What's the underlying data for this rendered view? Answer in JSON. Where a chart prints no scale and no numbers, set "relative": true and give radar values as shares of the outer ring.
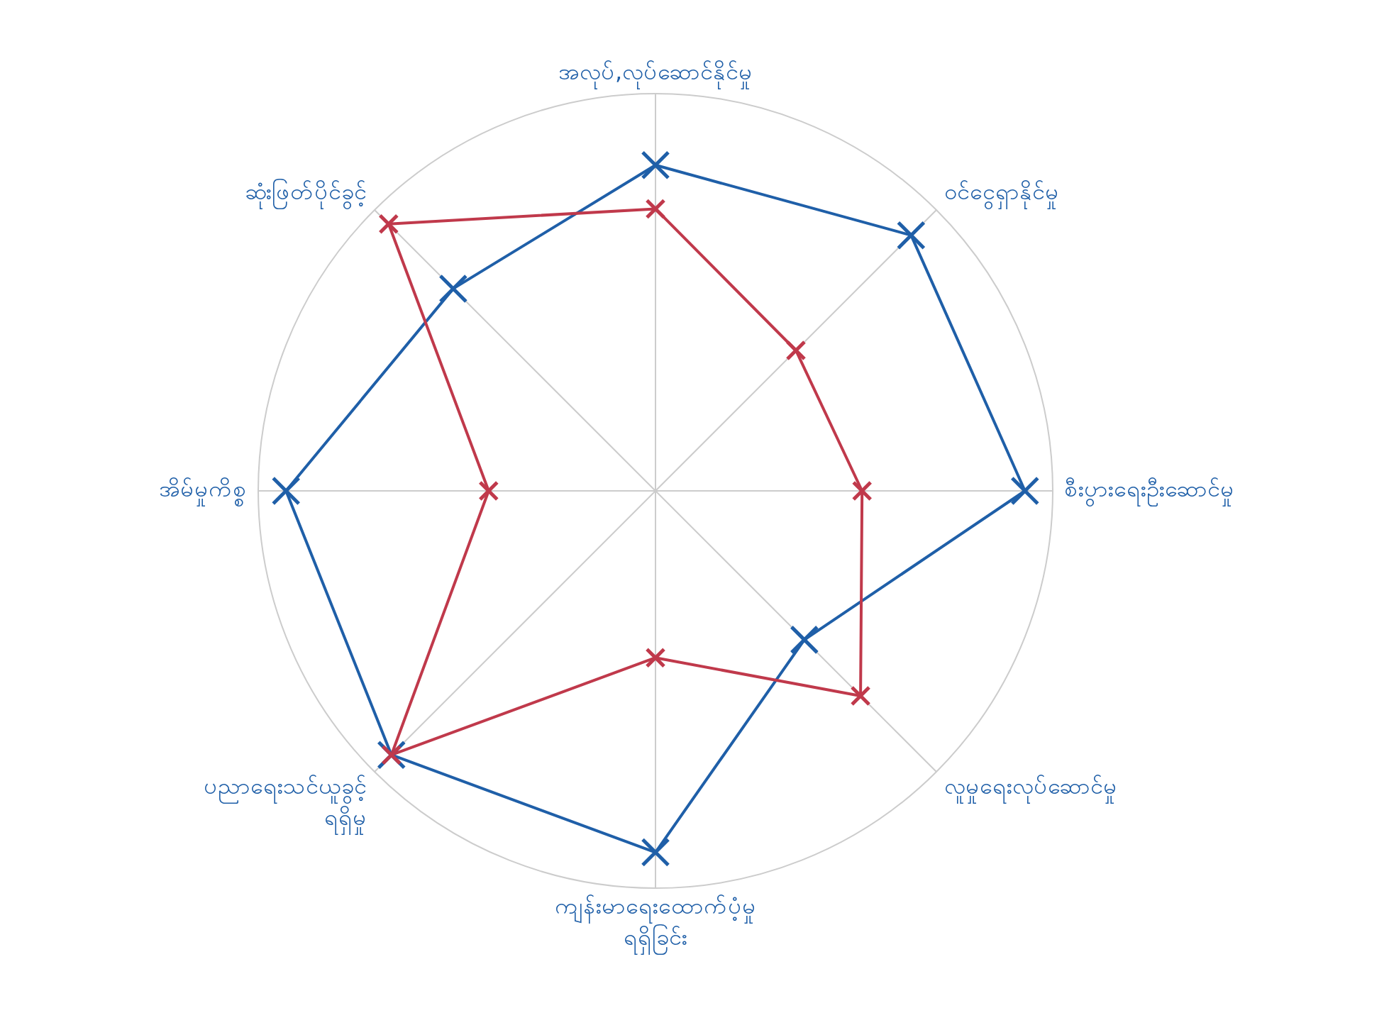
{
  "chart_data": {
    "type": "radar",
    "relative": true,
    "grid": true,
    "marker": "cross",
    "categories": [
      "အလုပ်,လုပ်ဆောင်နိုင်မှု",
      "ဝင်ငွေရှာနိုင်မှု",
      "စီးပွားရေးဦးဆောင်မှု",
      "လူမှုရေးလုပ်ဆောင်မှု",
      "ကျန်းမာရေးထောက်ပံ့မှု ရရှိခြင်း",
      "ပညာရေးသင်ယူခွင့် ရရှိမှု",
      "အိမ်မှုကိစ္စ",
      "ဆုံးဖြတ်ပိုင်ခွင့်"
    ],
    "series": [
      {
        "color": "#1f5fa8",
        "values": [
          0.82,
          0.91,
          0.93,
          0.53,
          0.91,
          0.94,
          0.93,
          0.72
        ]
      },
      {
        "color": "#c0394b",
        "values": [
          0.71,
          0.5,
          0.52,
          0.73,
          0.42,
          0.94,
          0.42,
          0.95
        ]
      }
    ]
  }
}
